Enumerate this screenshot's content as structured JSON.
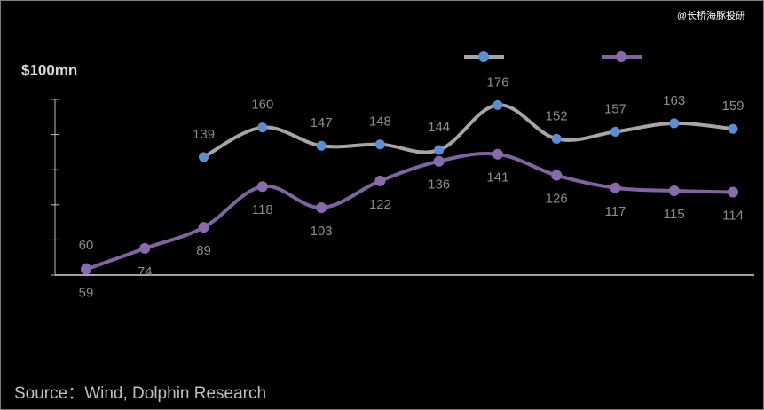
{
  "chart_data": {
    "type": "line",
    "y_label": "$100mn",
    "source": "Source：Wind, Dolphin Research",
    "watermark": "@长桥海豚投研",
    "categories": [
      null,
      null,
      null,
      null,
      null,
      null,
      null,
      null,
      null,
      null,
      null,
      null
    ],
    "series": [
      {
        "color": "#a6a6a6",
        "marker_color": "#5b8fd0",
        "label_side": "above",
        "values": [
          60,
          null,
          139,
          160,
          147,
          148,
          144,
          176,
          152,
          157,
          163,
          159
        ]
      },
      {
        "color": "#8064a2",
        "marker_color": "#8a6aae",
        "label_side": "below",
        "values": [
          59,
          74,
          89,
          118,
          103,
          122,
          136,
          141,
          126,
          117,
          115,
          114
        ]
      }
    ],
    "ylim": [
      55,
      180
    ],
    "yticks": [
      55,
      80,
      105,
      130,
      155,
      180
    ],
    "legend": "top-right"
  }
}
